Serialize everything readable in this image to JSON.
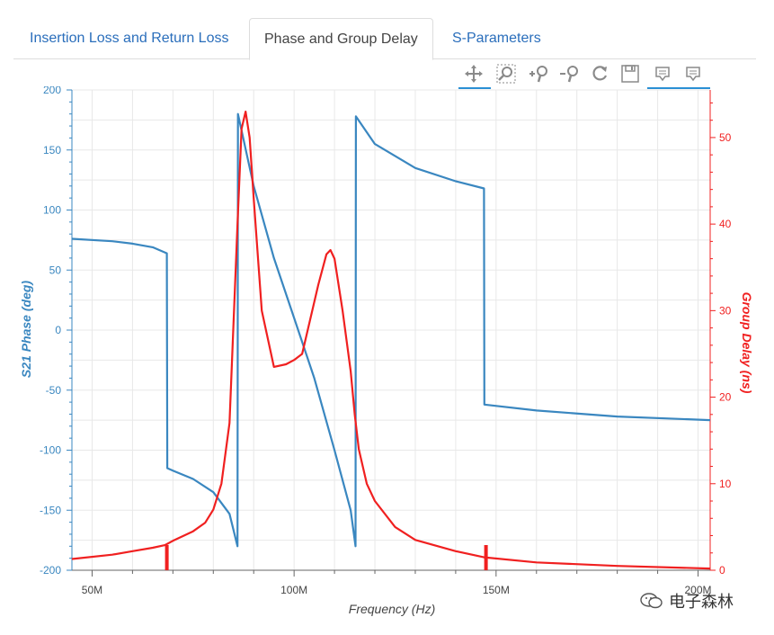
{
  "tabs": [
    {
      "label": "Insertion Loss and Return Loss",
      "active": false
    },
    {
      "label": "Phase and Group Delay",
      "active": true
    },
    {
      "label": "S-Parameters",
      "active": false
    }
  ],
  "toolbar": {
    "tools": [
      "pan-icon",
      "box-zoom-icon",
      "zoom-in-icon",
      "zoom-out-icon",
      "reset-icon",
      "save-icon",
      "hover-icon",
      "hover-icon-2"
    ]
  },
  "watermark": {
    "text": "电子森林"
  },
  "colors": {
    "phase": "#3a87c0",
    "delay": "#f02020",
    "tab_link": "#2a6ebb",
    "grid": "#e8e8e8"
  },
  "chart_data": {
    "type": "line",
    "xlabel": "Frequency (Hz)",
    "ylabel_left": "S21 Phase (deg)",
    "ylabel_right": "Group Delay (ns)",
    "x_ticks": [
      "50M",
      "100M",
      "150M",
      "200M"
    ],
    "x_tick_values": [
      50,
      100,
      150,
      200
    ],
    "xlim": [
      45,
      203
    ],
    "ylim_left": [
      -200,
      200
    ],
    "ylim_right": [
      0,
      55.5
    ],
    "y_left_ticks": [
      "200",
      "150",
      "100",
      "50",
      "0",
      "-50",
      "-100",
      "-150",
      "-200"
    ],
    "y_right_ticks": [
      "0",
      "10",
      "20",
      "30",
      "40",
      "50"
    ],
    "series": [
      {
        "axis": "left",
        "x": [
          45,
          55,
          60,
          65,
          68.5,
          68.6,
          70,
          75,
          80,
          84,
          86,
          86.1,
          90,
          95,
          100,
          105,
          110,
          114,
          115.2,
          115.3,
          120,
          130,
          140,
          147,
          147.1,
          160,
          180,
          203
        ],
        "y": [
          76,
          74,
          72,
          69,
          64,
          -115,
          -117,
          -124,
          -135,
          -153,
          -180,
          180,
          120,
          60,
          10,
          -40,
          -100,
          -150,
          -180,
          178,
          155,
          135,
          124,
          118,
          -62,
          -67,
          -72,
          -75
        ]
      },
      {
        "axis": "right",
        "x": [
          45,
          55,
          60,
          65,
          68,
          70,
          75,
          78,
          80,
          82,
          84,
          86,
          87,
          88,
          89,
          90,
          92,
          95,
          98,
          100,
          102,
          104,
          106,
          108,
          109,
          110,
          112,
          114,
          115,
          116,
          118,
          120,
          125,
          130,
          140,
          147,
          160,
          180,
          203
        ],
        "y": [
          1.3,
          1.8,
          2.2,
          2.6,
          2.9,
          3.4,
          4.5,
          5.5,
          7,
          10,
          17,
          40,
          51,
          53,
          50,
          43,
          30,
          23.5,
          23.8,
          24.3,
          25,
          29,
          33,
          36.5,
          37,
          36,
          30,
          23,
          18,
          14,
          10,
          8,
          5,
          3.5,
          2.2,
          1.5,
          0.9,
          0.5,
          0.2
        ]
      }
    ],
    "markers": [
      {
        "axis": "right",
        "x": 68.5,
        "y": 0
      },
      {
        "axis": "right",
        "x": 147.5,
        "y": 0
      }
    ]
  }
}
